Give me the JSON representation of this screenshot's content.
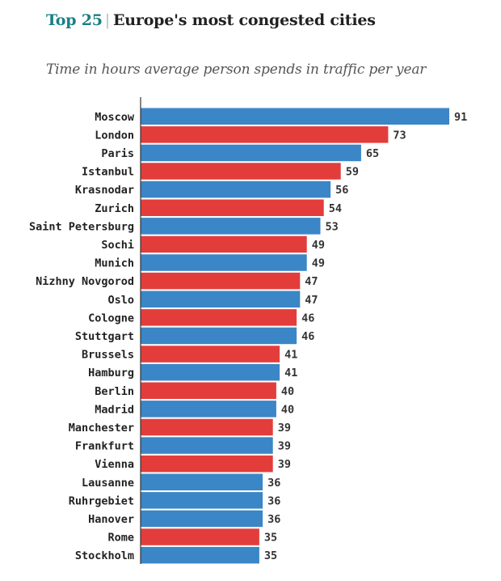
{
  "header": {
    "title_lead": "Top 25",
    "title_separator": "|",
    "title_main": "Europe's most congested cities"
  },
  "chart_data": {
    "type": "bar",
    "orientation": "horizontal",
    "title": "Top 25 | Europe's most congested cities",
    "subtitle": "Time in hours average person spends in traffic per year",
    "xlabel": "",
    "ylabel": "",
    "xlim": [
      0,
      91
    ],
    "grid": false,
    "colors": {
      "blue": "#3b86c6",
      "red": "#e33d3b"
    },
    "categories": [
      "Moscow",
      "London",
      "Paris",
      "Istanbul",
      "Krasnodar",
      "Zurich",
      "Saint Petersburg",
      "Sochi",
      "Munich",
      "Nizhny Novgorod",
      "Oslo",
      "Cologne",
      "Stuttgart",
      "Brussels",
      "Hamburg",
      "Berlin",
      "Madrid",
      "Manchester",
      "Frankfurt",
      "Vienna",
      "Lausanne",
      "Ruhrgebiet",
      "Hanover",
      "Rome",
      "Stockholm"
    ],
    "values": [
      91,
      73,
      65,
      59,
      56,
      54,
      53,
      49,
      49,
      47,
      47,
      46,
      46,
      41,
      41,
      40,
      40,
      39,
      39,
      39,
      36,
      36,
      36,
      35,
      35
    ],
    "bar_colors": [
      "blue",
      "red",
      "blue",
      "red",
      "blue",
      "red",
      "blue",
      "red",
      "blue",
      "red",
      "blue",
      "red",
      "blue",
      "red",
      "blue",
      "red",
      "blue",
      "red",
      "blue",
      "red",
      "blue",
      "blue",
      "blue",
      "red",
      "blue"
    ]
  }
}
